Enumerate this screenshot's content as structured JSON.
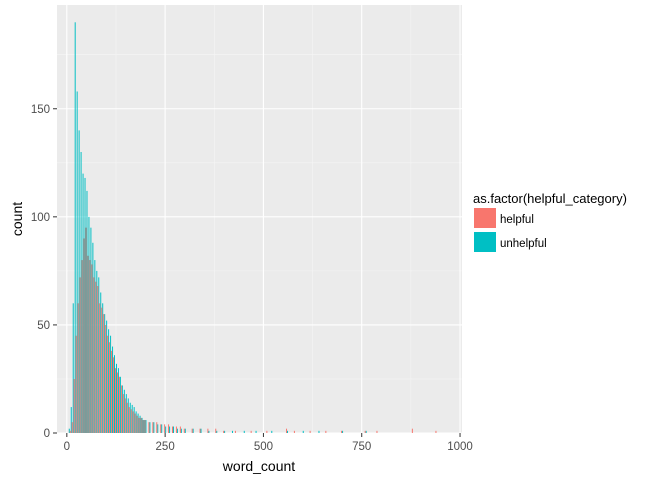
{
  "chart_data": {
    "type": "bar",
    "chart_subtype": "dodged histogram",
    "xlabel": "word_count",
    "ylabel": "count",
    "xlim": [
      -25,
      1005
    ],
    "ylim": [
      0,
      198
    ],
    "x_ticks": [
      0,
      250,
      500,
      750,
      1000
    ],
    "x_tick_labels": [
      "0",
      "250",
      "500",
      "750",
      "1000"
    ],
    "y_ticks": [
      0,
      50,
      100,
      150
    ],
    "y_tick_labels": [
      "0",
      "50",
      "100",
      "150"
    ],
    "grid": true,
    "panel_background": "#ebebeb",
    "legend": {
      "title": "as.factor(helpful_category)",
      "placement": "right",
      "entries": [
        {
          "label": "helpful",
          "color": "#f8766d"
        },
        {
          "label": "unhelpful",
          "color": "#00bfc4"
        }
      ]
    },
    "bin_width": 5,
    "series": [
      {
        "name": "unhelpful",
        "color": "#00bfc4",
        "x": [
          5,
          10,
          15,
          20,
          25,
          30,
          35,
          40,
          45,
          50,
          55,
          60,
          65,
          70,
          75,
          80,
          85,
          90,
          95,
          100,
          105,
          110,
          115,
          120,
          125,
          130,
          135,
          140,
          145,
          150,
          155,
          160,
          165,
          170,
          175,
          180,
          185,
          190,
          195,
          200,
          210,
          220,
          230,
          240,
          250,
          260,
          270,
          280,
          290,
          300,
          320,
          340,
          360,
          380,
          400,
          420,
          450,
          480,
          520,
          560,
          600,
          640,
          700,
          760
        ],
        "values": [
          2,
          12,
          60,
          190,
          158,
          140,
          130,
          120,
          118,
          112,
          100,
          95,
          88,
          80,
          75,
          72,
          65,
          60,
          55,
          52,
          48,
          45,
          40,
          36,
          32,
          30,
          26,
          22,
          20,
          18,
          16,
          14,
          13,
          12,
          10,
          9,
          8,
          7,
          6,
          6,
          5,
          5,
          4,
          4,
          3,
          3,
          3,
          2,
          2,
          2,
          2,
          2,
          1,
          1,
          1,
          1,
          1,
          1,
          1,
          1,
          1,
          1,
          1,
          1
        ]
      },
      {
        "name": "helpful",
        "color": "#f8766d",
        "x": [
          10,
          15,
          20,
          25,
          30,
          35,
          40,
          45,
          50,
          55,
          60,
          65,
          70,
          75,
          80,
          85,
          90,
          95,
          100,
          105,
          110,
          115,
          120,
          125,
          130,
          135,
          140,
          145,
          150,
          155,
          160,
          165,
          170,
          175,
          180,
          185,
          190,
          195,
          200,
          210,
          220,
          230,
          240,
          250,
          260,
          270,
          280,
          290,
          300,
          320,
          340,
          360,
          380,
          400,
          430,
          470,
          510,
          560,
          580,
          620,
          660,
          700,
          760,
          790,
          880,
          940
        ],
        "values": [
          1,
          5,
          25,
          45,
          60,
          72,
          80,
          90,
          95,
          82,
          80,
          78,
          72,
          70,
          68,
          60,
          58,
          55,
          50,
          45,
          42,
          38,
          35,
          30,
          28,
          26,
          22,
          18,
          16,
          14,
          12,
          11,
          10,
          9,
          8,
          7,
          7,
          6,
          6,
          5,
          5,
          5,
          4,
          4,
          4,
          3,
          3,
          3,
          2,
          2,
          2,
          2,
          2,
          1,
          1,
          1,
          1,
          2,
          1,
          1,
          1,
          1,
          1,
          1,
          2,
          1
        ]
      }
    ]
  }
}
